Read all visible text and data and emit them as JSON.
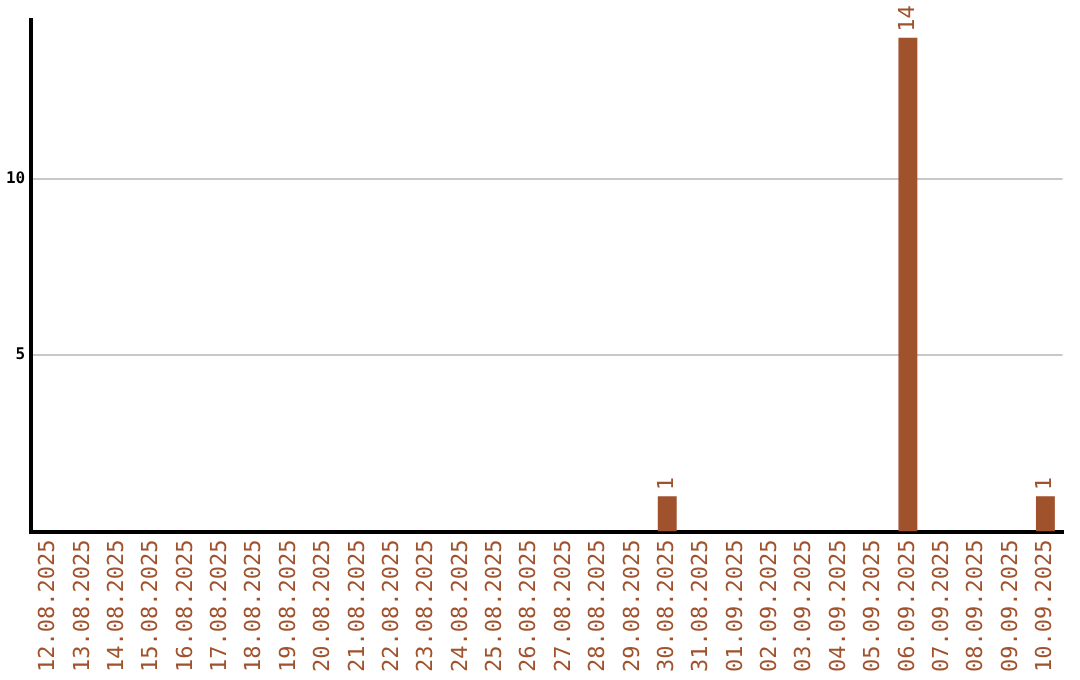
{
  "chart_data": {
    "type": "bar",
    "categories": [
      "12.08.2025",
      "13.08.2025",
      "14.08.2025",
      "15.08.2025",
      "16.08.2025",
      "17.08.2025",
      "18.08.2025",
      "19.08.2025",
      "20.08.2025",
      "21.08.2025",
      "22.08.2025",
      "23.08.2025",
      "24.08.2025",
      "25.08.2025",
      "26.08.2025",
      "27.08.2025",
      "28.08.2025",
      "29.08.2025",
      "30.08.2025",
      "31.08.2025",
      "01.09.2025",
      "02.09.2025",
      "03.09.2025",
      "04.09.2025",
      "05.09.2025",
      "06.09.2025",
      "07.09.2025",
      "08.09.2025",
      "09.09.2025",
      "10.09.2025"
    ],
    "values": [
      0,
      0,
      0,
      0,
      0,
      0,
      0,
      0,
      0,
      0,
      0,
      0,
      0,
      0,
      0,
      0,
      0,
      0,
      1,
      0,
      0,
      0,
      0,
      0,
      0,
      14,
      0,
      0,
      0,
      1
    ],
    "value_labels": [
      null,
      null,
      null,
      null,
      null,
      null,
      null,
      null,
      null,
      null,
      null,
      null,
      null,
      null,
      null,
      null,
      null,
      null,
      "1",
      null,
      null,
      null,
      null,
      null,
      null,
      "14",
      null,
      null,
      null,
      "1"
    ],
    "color": "#a0522d",
    "ylim": [
      0,
      14.5
    ],
    "yticks": [
      5,
      10
    ],
    "grid": "y",
    "legend": false
  }
}
